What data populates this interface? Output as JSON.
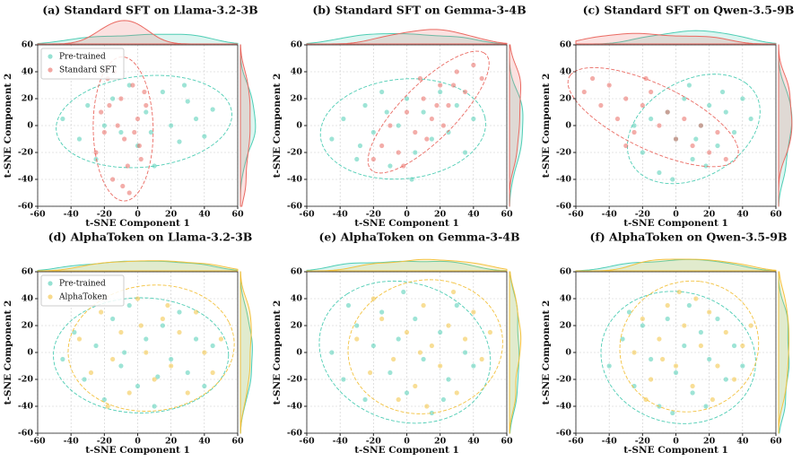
{
  "chart_data": [
    {
      "type": "scatter",
      "title": "(a) Standard SFT on Llama-3.2-3B",
      "x_label": "t-SNE Component 1",
      "y_label": "t-SNE Component 2",
      "xlim": [
        -60,
        60
      ],
      "ylim": [
        -60,
        60
      ],
      "xticks": [
        -60,
        -40,
        -20,
        0,
        20,
        40,
        60
      ],
      "yticks": [
        -60,
        -40,
        -20,
        0,
        20,
        40,
        60
      ],
      "grid": true,
      "legend": "upper left",
      "series": [
        {
          "name": "Pre-trained",
          "color": "#4ecdb4",
          "x": [
            -45,
            -35,
            -30,
            -25,
            -15,
            -10,
            -5,
            0,
            5,
            10,
            15,
            20,
            25,
            30,
            35,
            40,
            45,
            -20,
            8,
            28
          ],
          "y": [
            5,
            -10,
            15,
            -25,
            20,
            -5,
            30,
            -15,
            10,
            -30,
            25,
            0,
            -12,
            18,
            5,
            -8,
            12,
            0,
            -5,
            30
          ]
        },
        {
          "name": "Standard SFT",
          "color": "#ea6a62",
          "x": [
            -25,
            -22,
            -18,
            -15,
            -12,
            -10,
            -8,
            -5,
            -3,
            0,
            2,
            5,
            -20,
            -14,
            -6,
            -2,
            4,
            -17,
            -9,
            1
          ],
          "y": [
            -20,
            10,
            35,
            -40,
            0,
            20,
            -10,
            -50,
            30,
            5,
            -25,
            15,
            -5,
            40,
            -30,
            -5,
            25,
            15,
            -45,
            -15
          ]
        }
      ]
    },
    {
      "type": "scatter",
      "title": "(b) Standard SFT on Gemma-3-4B",
      "x_label": "t-SNE Component 1",
      "y_label": "t-SNE Component 2",
      "xlim": [
        -60,
        60
      ],
      "ylim": [
        -60,
        60
      ],
      "xticks": [
        -60,
        -40,
        -20,
        0,
        20,
        40,
        60
      ],
      "yticks": [
        -60,
        -40,
        -20,
        0,
        20,
        40,
        60
      ],
      "grid": true,
      "series": [
        {
          "color": "#4ecdb4",
          "x": [
            -45,
            -38,
            -30,
            -25,
            -20,
            -15,
            -10,
            -5,
            0,
            5,
            10,
            15,
            20,
            25,
            30,
            35,
            -12,
            3,
            40,
            -28
          ],
          "y": [
            -10,
            5,
            -25,
            15,
            -5,
            25,
            -30,
            0,
            20,
            -20,
            10,
            -10,
            25,
            -5,
            15,
            -20,
            10,
            -40,
            5,
            -15
          ]
        },
        {
          "color": "#ea6a62",
          "x": [
            -15,
            -10,
            -5,
            0,
            5,
            10,
            15,
            20,
            25,
            30,
            35,
            40,
            -20,
            12,
            22,
            28,
            8,
            -2,
            45,
            18
          ],
          "y": [
            -15,
            0,
            -20,
            10,
            -5,
            20,
            5,
            30,
            15,
            40,
            25,
            45,
            -25,
            -10,
            0,
            30,
            35,
            -30,
            35,
            15
          ]
        }
      ]
    },
    {
      "type": "scatter",
      "title": "(c) Standard SFT on Qwen-3.5-9B",
      "x_label": "t-SNE Component 1",
      "y_label": "t-SNE Component 2",
      "xlim": [
        -60,
        60
      ],
      "ylim": [
        -60,
        60
      ],
      "xticks": [
        -60,
        -40,
        -20,
        0,
        20,
        40,
        60
      ],
      "yticks": [
        -60,
        -40,
        -20,
        0,
        20,
        40,
        60
      ],
      "grid": true,
      "series": [
        {
          "color": "#4ecdb4",
          "x": [
            -20,
            -15,
            -10,
            -5,
            0,
            5,
            10,
            15,
            20,
            25,
            30,
            35,
            40,
            -25,
            -2,
            8,
            18,
            28,
            45,
            12
          ],
          "y": [
            -20,
            5,
            -35,
            10,
            -10,
            20,
            -25,
            0,
            15,
            -15,
            10,
            -5,
            20,
            0,
            -40,
            30,
            -30,
            25,
            5,
            -10
          ]
        },
        {
          "color": "#ea6a62",
          "x": [
            -55,
            -45,
            -40,
            -35,
            -30,
            -25,
            -20,
            -15,
            -10,
            -5,
            0,
            5,
            10,
            15,
            20,
            25,
            -30,
            -50,
            -18,
            30
          ],
          "y": [
            25,
            15,
            30,
            5,
            20,
            -5,
            15,
            25,
            0,
            10,
            -10,
            5,
            -15,
            0,
            -20,
            -5,
            -15,
            35,
            35,
            -25
          ]
        }
      ]
    },
    {
      "type": "scatter",
      "title": "(d) AlphaToken on Llama-3.2-3B",
      "x_label": "t-SNE Component 1",
      "y_label": "t-SNE Component 2",
      "xlim": [
        -60,
        60
      ],
      "ylim": [
        -60,
        60
      ],
      "xticks": [
        -60,
        -40,
        -20,
        0,
        20,
        40,
        60
      ],
      "yticks": [
        -60,
        -40,
        -20,
        0,
        20,
        40,
        60
      ],
      "grid": true,
      "legend": "upper left",
      "series": [
        {
          "name": "Pre-trained",
          "color": "#4ecdb4",
          "x": [
            -45,
            -38,
            -32,
            -25,
            -20,
            -15,
            -10,
            -5,
            0,
            5,
            10,
            15,
            20,
            25,
            30,
            35,
            40,
            45,
            -8,
            12
          ],
          "y": [
            -5,
            15,
            -20,
            5,
            -35,
            25,
            -10,
            35,
            -25,
            10,
            -40,
            20,
            -5,
            30,
            -15,
            10,
            -25,
            5,
            0,
            -18
          ]
        },
        {
          "name": "AlphaToken",
          "color": "#f3c23f",
          "x": [
            -35,
            -28,
            -22,
            -15,
            -10,
            -5,
            0,
            5,
            10,
            15,
            20,
            25,
            30,
            35,
            40,
            45,
            -18,
            2,
            18,
            50
          ],
          "y": [
            10,
            -15,
            30,
            -5,
            15,
            -30,
            40,
            0,
            -20,
            25,
            -10,
            15,
            -30,
            30,
            0,
            -15,
            -40,
            20,
            35,
            10
          ]
        }
      ]
    },
    {
      "type": "scatter",
      "title": "(e) AlphaToken on Gemma-3-4B",
      "x_label": "t-SNE Component 1",
      "y_label": "t-SNE Component 2",
      "xlim": [
        -60,
        60
      ],
      "ylim": [
        -60,
        60
      ],
      "xticks": [
        -60,
        -40,
        -20,
        0,
        20,
        40,
        60
      ],
      "yticks": [
        -60,
        -40,
        -20,
        0,
        20,
        40,
        60
      ],
      "grid": true,
      "series": [
        {
          "color": "#4ecdb4",
          "x": [
            -45,
            -38,
            -30,
            -25,
            -20,
            -15,
            -10,
            -5,
            0,
            5,
            10,
            15,
            20,
            25,
            30,
            35,
            40,
            -35,
            -2,
            22
          ],
          "y": [
            0,
            -20,
            20,
            -35,
            5,
            30,
            -15,
            10,
            -30,
            25,
            -5,
            -45,
            15,
            -20,
            35,
            0,
            -10,
            35,
            45,
            -35
          ]
        },
        {
          "color": "#f3c23f",
          "x": [
            -30,
            -22,
            -15,
            -8,
            0,
            5,
            10,
            15,
            20,
            25,
            30,
            35,
            40,
            45,
            -20,
            12,
            50,
            -5,
            28,
            8
          ],
          "y": [
            10,
            -15,
            25,
            -5,
            15,
            -25,
            35,
            5,
            -10,
            20,
            -30,
            10,
            30,
            -5,
            40,
            -40,
            15,
            -35,
            45,
            0
          ]
        }
      ]
    },
    {
      "type": "scatter",
      "title": "(f) AlphaToken on Qwen-3.5-9B",
      "x_label": "t-SNE Component 1",
      "y_label": "t-SNE Component 2",
      "xlim": [
        -60,
        60
      ],
      "ylim": [
        -60,
        60
      ],
      "xticks": [
        -60,
        -40,
        -20,
        0,
        20,
        40,
        60
      ],
      "yticks": [
        -60,
        -40,
        -20,
        0,
        20,
        40,
        60
      ],
      "grid": true,
      "series": [
        {
          "color": "#4ecdb4",
          "x": [
            -40,
            -32,
            -25,
            -20,
            -15,
            -10,
            -5,
            0,
            5,
            10,
            15,
            20,
            25,
            30,
            35,
            -28,
            -2,
            18,
            40,
            8
          ],
          "y": [
            -10,
            10,
            -25,
            20,
            -5,
            -40,
            25,
            -15,
            5,
            -30,
            15,
            -5,
            25,
            -20,
            5,
            30,
            -45,
            -40,
            -10,
            35
          ]
        },
        {
          "color": "#f3c23f",
          "x": [
            -25,
            -20,
            -15,
            -10,
            -5,
            0,
            5,
            10,
            15,
            20,
            25,
            30,
            35,
            -18,
            2,
            40,
            22,
            -8,
            12,
            45
          ],
          "y": [
            0,
            25,
            -20,
            10,
            35,
            -10,
            20,
            -25,
            5,
            30,
            -10,
            15,
            -20,
            -35,
            45,
            5,
            -35,
            -5,
            40,
            20
          ]
        }
      ]
    }
  ]
}
